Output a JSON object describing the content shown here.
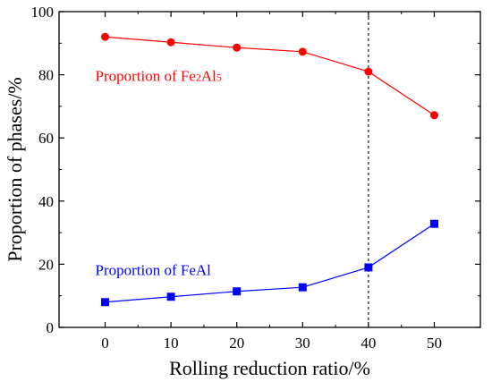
{
  "chart_data": {
    "type": "line",
    "xlabel": "Rolling reduction ratio/%",
    "ylabel": "Proportion of phases/%",
    "xlim": [
      -7,
      57
    ],
    "ylim": [
      0,
      100
    ],
    "xticks": [
      0,
      10,
      20,
      30,
      40,
      50
    ],
    "yticks": [
      0,
      20,
      40,
      60,
      80,
      100
    ],
    "grid": false,
    "legend": "none",
    "reference_line": {
      "x": 40,
      "style": "dashed",
      "color": "#000000"
    },
    "series": [
      {
        "name": "Proportion of Fe2Al5",
        "label_parts": [
          {
            "text": "Proportion of Fe",
            "sub": false
          },
          {
            "text": "2",
            "sub": true
          },
          {
            "text": "Al",
            "sub": false
          },
          {
            "text": "5",
            "sub": true
          }
        ],
        "label_anchor": {
          "x": 0,
          "y": 80
        },
        "color": "#ff0000",
        "marker": "circle",
        "x": [
          0,
          10,
          20,
          30,
          40,
          50
        ],
        "values": [
          92,
          90.3,
          88.6,
          87.3,
          81,
          67.2
        ]
      },
      {
        "name": "Proportion of FeAl",
        "label_parts": [
          {
            "text": "Proportion of FeAl",
            "sub": false
          }
        ],
        "label_anchor": {
          "x": 0,
          "y": 18.5
        },
        "color": "#0000ff",
        "marker": "square",
        "x": [
          0,
          10,
          20,
          30,
          40,
          50
        ],
        "values": [
          8,
          9.7,
          11.4,
          12.7,
          19,
          32.8
        ]
      }
    ]
  }
}
